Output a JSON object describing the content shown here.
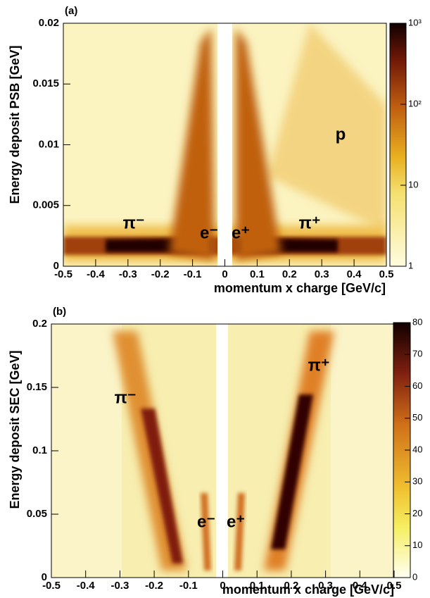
{
  "chart_data": [
    {
      "type": "histogram2d",
      "panel_label": "(a)",
      "xlabel": "momentum x charge [GeV/c]",
      "ylabel": "Energy deposit PSB [GeV]",
      "xlim": [
        -0.5,
        0.5
      ],
      "xticks": [
        -0.5,
        -0.4,
        -0.3,
        -0.2,
        -0.1,
        0,
        0.1,
        0.2,
        0.3,
        0.4,
        0.5
      ],
      "ylim": [
        0,
        0.02
      ],
      "yticks": [
        0,
        0.005,
        0.01,
        0.015,
        0.02
      ],
      "colorbar": {
        "log": true,
        "lim": [
          1,
          1000
        ],
        "ticks": [
          1,
          10,
          {
            "value": 100,
            "label": "10²"
          },
          {
            "value": 1000,
            "label": "10³"
          }
        ]
      },
      "annotations": [
        "π⁻",
        "e⁻",
        "e⁺",
        "π⁺",
        "p"
      ]
    },
    {
      "type": "histogram2d",
      "panel_label": "(b)",
      "xlabel": "momentum x charge [GeV/c]",
      "ylabel": "Energy deposit SEC [GeV]",
      "xlim": [
        -0.5,
        0.5
      ],
      "xticks": [
        -0.5,
        -0.4,
        -0.3,
        -0.2,
        -0.1,
        0,
        0.1,
        0.2,
        0.3,
        0.4,
        0.5
      ],
      "ylim": [
        0,
        0.2
      ],
      "yticks": [
        0,
        0.05,
        0.1,
        0.15,
        0.2
      ],
      "colorbar": {
        "log": false,
        "lim": [
          0,
          80
        ],
        "ticks": [
          0,
          10,
          20,
          30,
          40,
          50,
          60,
          70,
          80
        ]
      },
      "annotations": [
        "π⁻",
        "π⁺",
        "e⁻",
        "e⁺"
      ]
    }
  ]
}
